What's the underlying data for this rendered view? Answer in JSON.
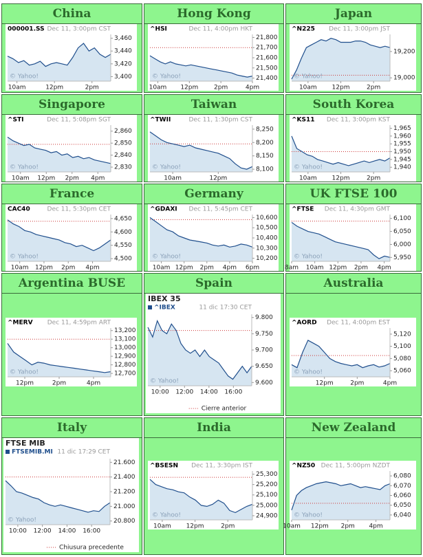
{
  "chart_data": [
    {
      "type": "line",
      "region": "China",
      "symbol": "000001.SS",
      "timestamp": "Dec 11, 3:00pm CST",
      "watermark": "© Yahoo!",
      "color": "#1f4e8c",
      "xlim": [
        9.5,
        15
      ],
      "xticks": [
        {
          "value": 10,
          "label": "10am"
        },
        {
          "value": 12,
          "label": "12pm"
        },
        {
          "value": 14,
          "label": "2pm"
        }
      ],
      "ylim": [
        3393,
        3466
      ],
      "yticks": [
        {
          "value": 3400,
          "label": "3,400"
        },
        {
          "value": 3420,
          "label": "3,420"
        },
        {
          "value": 3440,
          "label": "3,440"
        },
        {
          "value": 3460,
          "label": "3,460"
        }
      ],
      "values": [
        3432,
        3428,
        3422,
        3425,
        3418,
        3420,
        3424,
        3416,
        3420,
        3422,
        3420,
        3418,
        3430,
        3445,
        3452,
        3440,
        3445,
        3435,
        3430,
        3435
      ]
    },
    {
      "type": "line",
      "region": "Hong Kong",
      "symbol": "^HSI",
      "timestamp": "Dec 11, 4:00pm HKT",
      "watermark": "© Yahoo!",
      "color": "#1f4e8c",
      "xlim": [
        9.5,
        16
      ],
      "xticks": [
        {
          "value": 10,
          "label": "10am"
        },
        {
          "value": 12,
          "label": "12pm"
        },
        {
          "value": 14,
          "label": "2pm"
        },
        {
          "value": 16,
          "label": "4pm"
        }
      ],
      "ylim": [
        21370,
        21830
      ],
      "yticks": [
        {
          "value": 21400,
          "label": "21,400"
        },
        {
          "value": 21500,
          "label": "21,500"
        },
        {
          "value": 21600,
          "label": "21,600"
        },
        {
          "value": 21700,
          "label": "21,700"
        },
        {
          "value": 21800,
          "label": "21,800"
        }
      ],
      "prev_close": 21700,
      "values": [
        21620,
        21590,
        21560,
        21540,
        21560,
        21540,
        21530,
        21520,
        21530,
        21520,
        21510,
        21500,
        21490,
        21480,
        21470,
        21460,
        21450,
        21430,
        21420,
        21410,
        21420
      ]
    },
    {
      "type": "line",
      "region": "Japan",
      "symbol": "^N225",
      "timestamp": "Dec 11, 3:00pm JST",
      "watermark": "© Yahoo!",
      "color": "#1f4e8c",
      "xlim": [
        9,
        15
      ],
      "xticks": [
        {
          "value": 10,
          "label": "10am"
        },
        {
          "value": 12,
          "label": "12pm"
        },
        {
          "value": 14,
          "label": "2pm"
        }
      ],
      "ylim": [
        18975,
        19330
      ],
      "yticks": [
        {
          "value": 19000,
          "label": "19,000"
        },
        {
          "value": 19200,
          "label": "19,200"
        }
      ],
      "prev_close": 19020,
      "values": [
        18990,
        19060,
        19150,
        19230,
        19250,
        19270,
        19290,
        19280,
        19300,
        19290,
        19270,
        19270,
        19270,
        19280,
        19280,
        19270,
        19250,
        19240,
        19230,
        19240,
        19230
      ]
    },
    {
      "type": "line",
      "region": "Singapore",
      "symbol": "^STI",
      "timestamp": "Dec 11, 5:08pm SGT",
      "watermark": "© Yahoo!",
      "color": "#1f4e8c",
      "xlim": [
        9,
        17
      ],
      "xticks": [
        {
          "value": 10,
          "label": "10am"
        },
        {
          "value": 12,
          "label": "12pm"
        },
        {
          "value": 14,
          "label": "2pm"
        },
        {
          "value": 16,
          "label": "4pm"
        }
      ],
      "ylim": [
        2826,
        2865
      ],
      "yticks": [
        {
          "value": 2830,
          "label": "2,830"
        },
        {
          "value": 2840,
          "label": "2,840"
        },
        {
          "value": 2850,
          "label": "2,850"
        },
        {
          "value": 2860,
          "label": "2,860"
        }
      ],
      "prev_close": 2849,
      "values": [
        2855,
        2852,
        2850,
        2848,
        2849,
        2846,
        2845,
        2844,
        2842,
        2843,
        2840,
        2841,
        2838,
        2839,
        2837,
        2838,
        2836,
        2835,
        2834,
        2833
      ]
    },
    {
      "type": "line",
      "region": "Taiwan",
      "symbol": "^TWII",
      "timestamp": "Dec 11, 1:30pm CST",
      "watermark": "© Yahoo!",
      "color": "#1f4e8c",
      "xlim": [
        9,
        13.5
      ],
      "xticks": [
        {
          "value": 10,
          "label": "10am"
        },
        {
          "value": 12,
          "label": "12pm"
        }
      ],
      "ylim": [
        8090,
        8265
      ],
      "yticks": [
        {
          "value": 8100,
          "label": "8,100"
        },
        {
          "value": 8150,
          "label": "8,150"
        },
        {
          "value": 8200,
          "label": "8,200"
        },
        {
          "value": 8250,
          "label": "8,250"
        }
      ],
      "prev_close": 8195,
      "values": [
        8240,
        8225,
        8210,
        8200,
        8195,
        8190,
        8185,
        8190,
        8180,
        8175,
        8170,
        8165,
        8160,
        8150,
        8140,
        8120,
        8105,
        8100,
        8110
      ]
    },
    {
      "type": "line",
      "region": "South Korea",
      "symbol": "^KS11",
      "timestamp": "Dec 11, 3:00pm KST",
      "watermark": "© Yahoo!",
      "color": "#1f4e8c",
      "xlim": [
        9,
        15
      ],
      "xticks": [
        {
          "value": 10,
          "label": "10am"
        },
        {
          "value": 12,
          "label": "12pm"
        },
        {
          "value": 14,
          "label": "2pm"
        }
      ],
      "ylim": [
        1937,
        1967
      ],
      "yticks": [
        {
          "value": 1940,
          "label": "1,940"
        },
        {
          "value": 1945,
          "label": "1,945"
        },
        {
          "value": 1950,
          "label": "1,950"
        },
        {
          "value": 1955,
          "label": "1,955"
        },
        {
          "value": 1960,
          "label": "1,960"
        },
        {
          "value": 1965,
          "label": "1,965"
        }
      ],
      "prev_close": 1950,
      "values": [
        1960,
        1952,
        1950,
        1948,
        1947,
        1945,
        1944,
        1943,
        1942,
        1943,
        1942,
        1941,
        1942,
        1943,
        1944,
        1943,
        1944,
        1945,
        1944,
        1946
      ]
    },
    {
      "type": "line",
      "region": "France",
      "symbol": "CAC40",
      "timestamp": "Dec 11, 5:30pm CET",
      "watermark": "© Yahoo!",
      "color": "#1f4e8c",
      "xlim": [
        9,
        17.5
      ],
      "xticks": [
        {
          "value": 10,
          "label": "10am"
        },
        {
          "value": 12,
          "label": "12pm"
        },
        {
          "value": 14,
          "label": "2pm"
        },
        {
          "value": 16,
          "label": "4pm"
        }
      ],
      "ylim": [
        4490,
        4665
      ],
      "yticks": [
        {
          "value": 4500,
          "label": "4,500"
        },
        {
          "value": 4550,
          "label": "4,550"
        },
        {
          "value": 4600,
          "label": "4,600"
        },
        {
          "value": 4650,
          "label": "4,650"
        }
      ],
      "prev_close": 4640,
      "values": [
        4645,
        4630,
        4620,
        4605,
        4600,
        4590,
        4585,
        4580,
        4575,
        4570,
        4560,
        4555,
        4545,
        4550,
        4540,
        4530,
        4540,
        4555,
        4570
      ]
    },
    {
      "type": "line",
      "region": "Germany",
      "symbol": "^GDAXI",
      "timestamp": "Dec 11, 5:45pm CET",
      "watermark": "© Yahoo!",
      "color": "#1f4e8c",
      "xlim": [
        9,
        18
      ],
      "xticks": [
        {
          "value": 10,
          "label": "10am"
        },
        {
          "value": 12,
          "label": "12pm"
        },
        {
          "value": 14,
          "label": "2pm"
        },
        {
          "value": 16,
          "label": "4pm"
        },
        {
          "value": 18,
          "label": "6pm"
        }
      ],
      "ylim": [
        10170,
        10630
      ],
      "yticks": [
        {
          "value": 10200,
          "label": "10,200"
        },
        {
          "value": 10300,
          "label": "10,300"
        },
        {
          "value": 10400,
          "label": "10,400"
        },
        {
          "value": 10500,
          "label": "10,500"
        },
        {
          "value": 10600,
          "label": "10,600"
        }
      ],
      "prev_close": 10580,
      "values": [
        10600,
        10560,
        10520,
        10480,
        10460,
        10420,
        10400,
        10380,
        10370,
        10360,
        10350,
        10330,
        10320,
        10330,
        10310,
        10320,
        10340,
        10330,
        10310
      ]
    },
    {
      "type": "line",
      "region": "UK FTSE 100",
      "symbol": "^FTSE",
      "timestamp": "Dec 11, 4:30pm GMT",
      "watermark": "© Yahoo!",
      "color": "#1f4e8c",
      "xlim": [
        8,
        16.5
      ],
      "xticks": [
        {
          "value": 8,
          "label": "8am"
        },
        {
          "value": 10,
          "label": "10am"
        },
        {
          "value": 12,
          "label": "12pm"
        },
        {
          "value": 14,
          "label": "2pm"
        },
        {
          "value": 16,
          "label": "4pm"
        }
      ],
      "ylim": [
        5935,
        6115
      ],
      "yticks": [
        {
          "value": 5950,
          "label": "5,950"
        },
        {
          "value": 6000,
          "label": "6,000"
        },
        {
          "value": 6050,
          "label": "6,050"
        },
        {
          "value": 6100,
          "label": "6,100"
        }
      ],
      "prev_close": 6090,
      "values": [
        6085,
        6070,
        6060,
        6050,
        6045,
        6040,
        6030,
        6020,
        6010,
        6005,
        6000,
        5995,
        5990,
        5985,
        5980,
        5960,
        5945,
        5955,
        5950
      ]
    },
    {
      "type": "line",
      "region": "Argentina BUSE",
      "symbol": "^MERV",
      "timestamp": "Dec 11, 4:59pm ART",
      "watermark": "© Yahoo!",
      "color": "#1f4e8c",
      "xlim": [
        11,
        17
      ],
      "xticks": [
        {
          "value": 12,
          "label": "12pm"
        },
        {
          "value": 14,
          "label": "2pm"
        },
        {
          "value": 16,
          "label": "4pm"
        }
      ],
      "ylim": [
        12660,
        13230
      ],
      "yticks": [
        {
          "value": 12700,
          "label": "12,700"
        },
        {
          "value": 12800,
          "label": "12,800"
        },
        {
          "value": 12900,
          "label": "12,900"
        },
        {
          "value": 13000,
          "label": "13,000"
        },
        {
          "value": 13100,
          "label": "13,100"
        },
        {
          "value": 13200,
          "label": "13,200"
        }
      ],
      "prev_close": 13100,
      "values": [
        13050,
        12950,
        12900,
        12850,
        12800,
        12830,
        12820,
        12800,
        12790,
        12780,
        12770,
        12760,
        12750,
        12740,
        12730,
        12720,
        12710,
        12720
      ]
    },
    {
      "type": "line",
      "region": "Spain",
      "title": "IBEX 35",
      "symbol": "^IBEX",
      "timestamp": "11 dic 17:30 CET",
      "watermark": "© Yahoo!",
      "legend_label": "Cierre anterior",
      "color": "#1f4e8c",
      "xlim": [
        9,
        17.5
      ],
      "xticks": [
        {
          "value": 10,
          "label": "10:00"
        },
        {
          "value": 12,
          "label": "12:00"
        },
        {
          "value": 14,
          "label": "14:00"
        },
        {
          "value": 16,
          "label": "16:00"
        }
      ],
      "ylim": [
        9590,
        9810
      ],
      "yticks": [
        {
          "value": 9600,
          "label": "9.600"
        },
        {
          "value": 9650,
          "label": "9.650"
        },
        {
          "value": 9700,
          "label": "9.700"
        },
        {
          "value": 9750,
          "label": "9.750"
        },
        {
          "value": 9800,
          "label": "9.800"
        }
      ],
      "prev_close": 9760,
      "values": [
        9770,
        9740,
        9790,
        9760,
        9750,
        9780,
        9760,
        9720,
        9700,
        9690,
        9700,
        9680,
        9700,
        9680,
        9670,
        9660,
        9640,
        9620,
        9610,
        9630,
        9650,
        9630,
        9650
      ]
    },
    {
      "type": "line",
      "region": "Australia",
      "symbol": "^AORD",
      "timestamp": "Dec 11, 4:00pm EST",
      "watermark": "© Yahoo!",
      "color": "#1f4e8c",
      "xlim": [
        10,
        16
      ],
      "xticks": [
        {
          "value": 12,
          "label": "12pm"
        },
        {
          "value": 14,
          "label": "2pm"
        },
        {
          "value": 16,
          "label": "4pm"
        }
      ],
      "ylim": [
        5050,
        5130
      ],
      "yticks": [
        {
          "value": 5060,
          "label": "5,060"
        },
        {
          "value": 5080,
          "label": "5,080"
        },
        {
          "value": 5100,
          "label": "5,100"
        },
        {
          "value": 5120,
          "label": "5,120"
        }
      ],
      "prev_close": 5085,
      "values": [
        5070,
        5065,
        5090,
        5110,
        5105,
        5100,
        5090,
        5080,
        5075,
        5072,
        5070,
        5068,
        5070,
        5065,
        5068,
        5070,
        5066,
        5068,
        5072
      ]
    },
    {
      "type": "line",
      "region": "Italy",
      "title": "FTSE MIB",
      "symbol": "FTSEMIB.MI",
      "timestamp": "11 dic 17:29 CET",
      "watermark": "© Yahoo!",
      "legend_label": "Chiusura precedente",
      "color": "#1f4e8c",
      "xlim": [
        9,
        17.5
      ],
      "xticks": [
        {
          "value": 10,
          "label": "10:00"
        },
        {
          "value": 12,
          "label": "12:00"
        },
        {
          "value": 14,
          "label": "14:00"
        },
        {
          "value": 16,
          "label": "16:00"
        }
      ],
      "ylim": [
        20750,
        21650
      ],
      "yticks": [
        {
          "value": 20800,
          "label": "20.800"
        },
        {
          "value": 21000,
          "label": "21.000"
        },
        {
          "value": 21200,
          "label": "21.200"
        },
        {
          "value": 21400,
          "label": "21.400"
        },
        {
          "value": 21600,
          "label": "21.600"
        }
      ],
      "prev_close": 21400,
      "values": [
        21350,
        21280,
        21200,
        21180,
        21150,
        21120,
        21100,
        21050,
        21020,
        21000,
        21020,
        21000,
        20980,
        20960,
        20940,
        20920,
        20940,
        20930,
        21000,
        21050
      ]
    },
    {
      "type": "line",
      "region": "India",
      "symbol": "^BSESN",
      "timestamp": "Dec 11, 3:30pm IST",
      "watermark": "© Yahoo!",
      "color": "#1f4e8c",
      "xlim": [
        9.25,
        15.5
      ],
      "xticks": [
        {
          "value": 10,
          "label": "10am"
        },
        {
          "value": 12,
          "label": "12pm"
        },
        {
          "value": 14,
          "label": "2pm"
        }
      ],
      "ylim": [
        24860,
        25330
      ],
      "yticks": [
        {
          "value": 24900,
          "label": "24,900"
        },
        {
          "value": 25000,
          "label": "25,000"
        },
        {
          "value": 25100,
          "label": "25,100"
        },
        {
          "value": 25200,
          "label": "25,200"
        },
        {
          "value": 25300,
          "label": "25,300"
        }
      ],
      "prev_close": 25270,
      "values": [
        25250,
        25200,
        25180,
        25160,
        25150,
        25130,
        25120,
        25080,
        25050,
        25000,
        24990,
        25010,
        25050,
        25020,
        24950,
        24930,
        24960,
        24990,
        25010
      ]
    },
    {
      "type": "line",
      "region": "New Zealand",
      "symbol": "^NZ50",
      "timestamp": "Dec 11, 5:00pm NZDT",
      "watermark": "© Yahoo!",
      "color": "#1f4e8c",
      "xlim": [
        10,
        17
      ],
      "xticks": [
        {
          "value": 10,
          "label": "10am"
        },
        {
          "value": 12,
          "label": "12pm"
        },
        {
          "value": 14,
          "label": "2pm"
        },
        {
          "value": 16,
          "label": "4pm"
        }
      ],
      "ylim": [
        6035,
        6085
      ],
      "yticks": [
        {
          "value": 6040,
          "label": "6,040"
        },
        {
          "value": 6050,
          "label": "6,050"
        },
        {
          "value": 6060,
          "label": "6,060"
        },
        {
          "value": 6070,
          "label": "6,070"
        },
        {
          "value": 6080,
          "label": "6,080"
        }
      ],
      "prev_close": 6052,
      "values": [
        6045,
        6060,
        6065,
        6068,
        6070,
        6072,
        6073,
        6074,
        6073,
        6072,
        6070,
        6071,
        6072,
        6070,
        6068,
        6069,
        6068,
        6067,
        6066,
        6070,
        6072
      ]
    }
  ]
}
